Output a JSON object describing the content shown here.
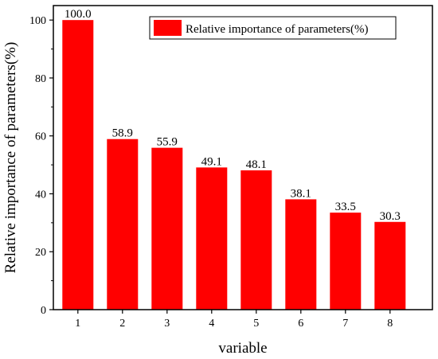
{
  "chart_data": {
    "type": "bar",
    "categories": [
      "1",
      "2",
      "3",
      "4",
      "5",
      "6",
      "7",
      "8"
    ],
    "values": [
      100.0,
      58.9,
      55.9,
      49.1,
      48.1,
      38.1,
      33.5,
      30.3
    ],
    "data_labels": [
      "100.0",
      "58.9",
      "55.9",
      "49.1",
      "48.1",
      "38.1",
      "33.5",
      "30.3"
    ],
    "xlabel": "variable",
    "ylabel": "Relative importance of parameters(%)",
    "ylim": [
      0,
      105
    ],
    "yticks": [
      "0",
      "20",
      "40",
      "60",
      "80",
      "100"
    ],
    "legend": {
      "label": "Relative importance of parameters(%)",
      "position": "top-right"
    },
    "bar_color": "#ff0000",
    "grid": false
  }
}
